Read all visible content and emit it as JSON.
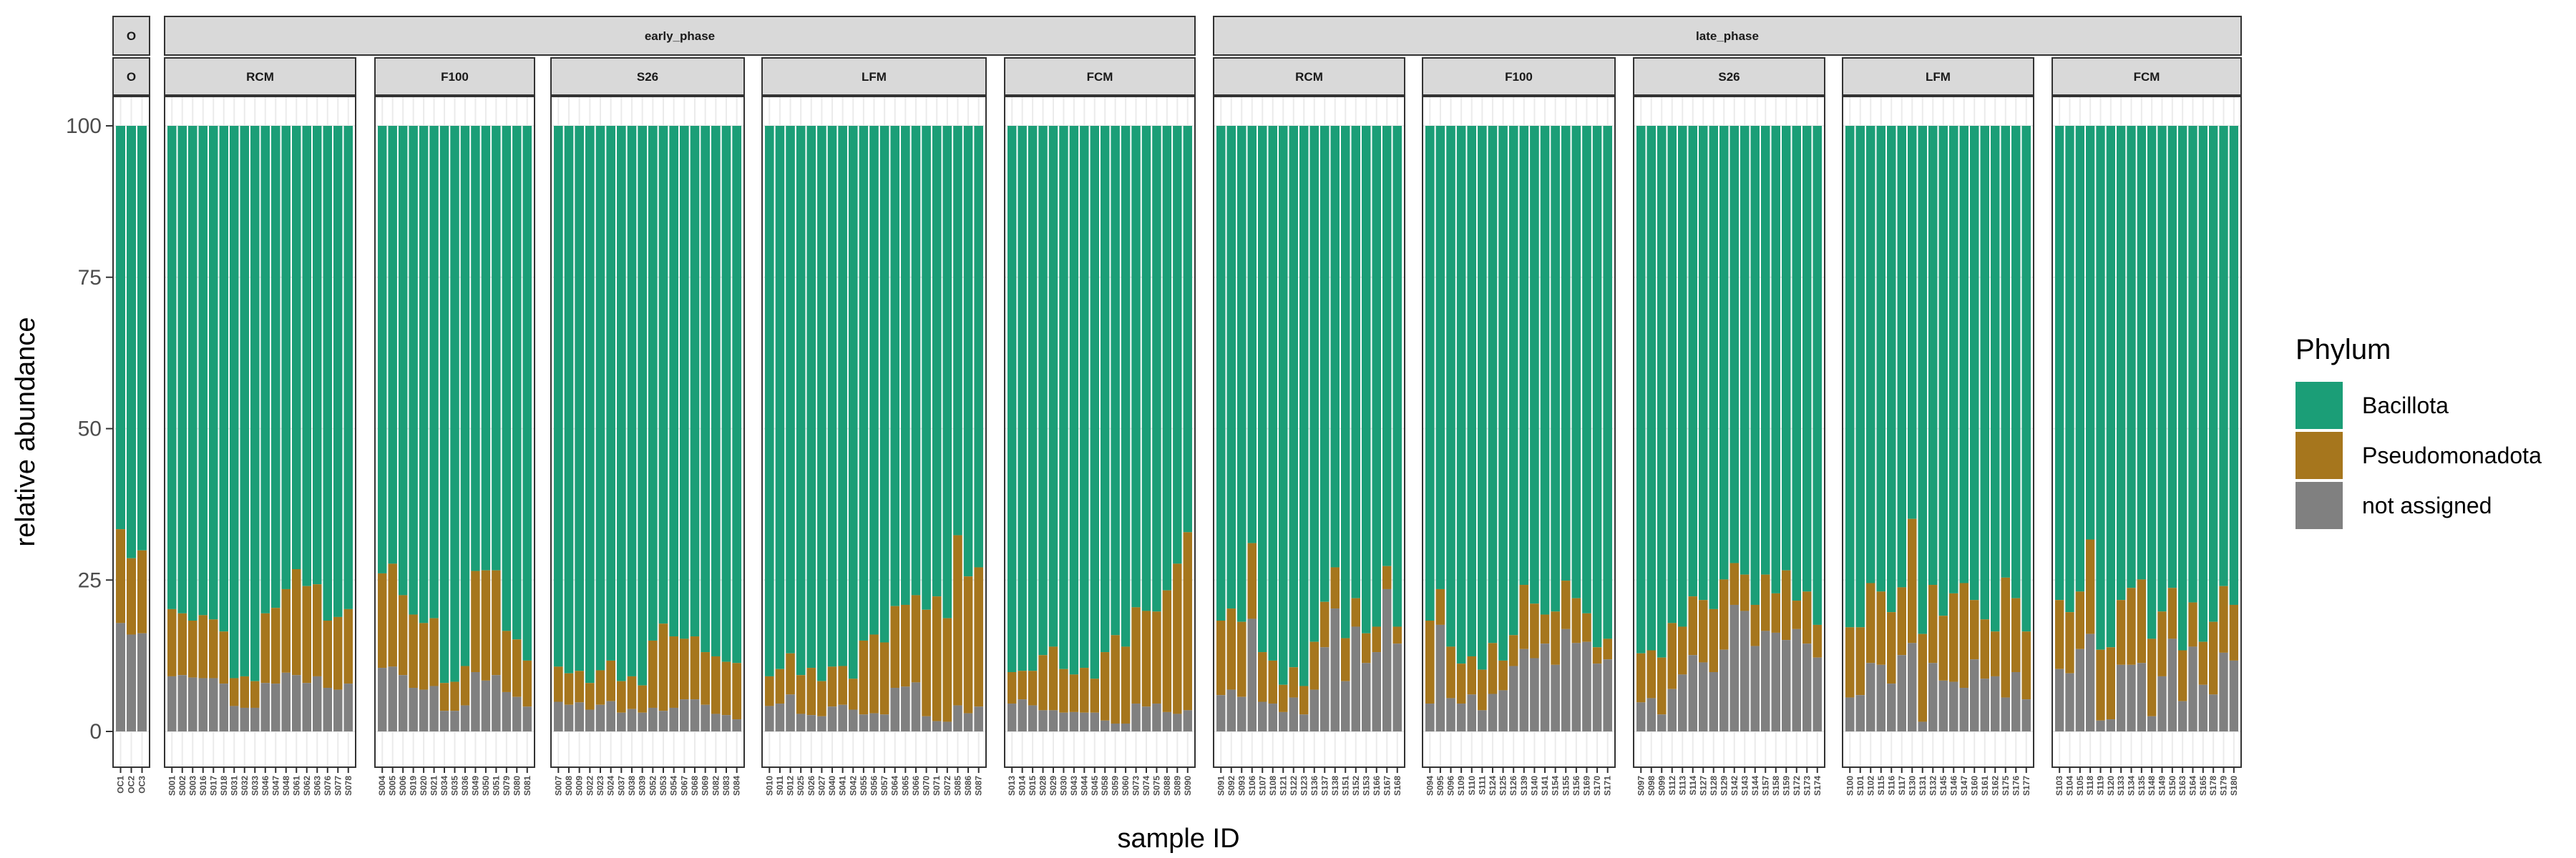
{
  "chart_data": {
    "type": "bar",
    "stacked": true,
    "xlabel": "sample ID",
    "ylabel": "relative abundance",
    "ylim": [
      0,
      100
    ],
    "yticks": [
      0,
      25,
      50,
      75,
      100
    ],
    "grid": true,
    "legend": {
      "title": "Phylum",
      "position": "right",
      "entries": [
        {
          "name": "Bacillota",
          "color": "#1b9e77"
        },
        {
          "name": "Pseudomonadota",
          "color": "#a6761d"
        },
        {
          "name": "not assigned",
          "color": "#808080"
        }
      ]
    },
    "phase_strips": [
      {
        "label": "O"
      },
      {
        "label": "early_phase"
      },
      {
        "label": "late_phase"
      }
    ],
    "facets": [
      {
        "phase": "O",
        "group": "O",
        "samples": [
          "OC1",
          "OC2",
          "OC3"
        ],
        "not_assigned": [
          17.9,
          16.0,
          16.2
        ],
        "pseudomonadota": [
          15.5,
          12.6,
          13.7
        ],
        "bacillota": [
          66.6,
          71.4,
          70.1
        ]
      },
      {
        "phase": "early_phase",
        "group": "RCM",
        "samples": [
          "S001",
          "S002",
          "S003",
          "S016",
          "S017",
          "S018",
          "S031",
          "S032",
          "S033",
          "S046",
          "S047",
          "S048",
          "S061",
          "S062",
          "S063",
          "S076",
          "S077",
          "S078"
        ],
        "not_assigned": [
          9.1,
          9.3,
          8.9,
          8.8,
          8.8,
          7.9,
          4.2,
          3.9,
          3.9,
          8.0,
          7.9,
          9.7,
          9.3,
          8.0,
          9.1,
          7.2,
          6.9,
          7.9
        ],
        "pseudomonadota": [
          11.1,
          10.2,
          9.4,
          10.4,
          9.7,
          8.6,
          4.6,
          5.2,
          4.4,
          11.5,
          12.5,
          13.8,
          17.5,
          16.0,
          15.2,
          11.1,
          12.0,
          12.3
        ],
        "bacillota": [
          79.8,
          80.5,
          81.7,
          80.8,
          81.5,
          83.5,
          91.2,
          90.9,
          91.7,
          80.5,
          79.6,
          76.5,
          73.2,
          76.0,
          75.7,
          81.7,
          81.1,
          79.8
        ]
      },
      {
        "phase": "early_phase",
        "group": "F100",
        "samples": [
          "S004",
          "S005",
          "S006",
          "S019",
          "S020",
          "S021",
          "S034",
          "S035",
          "S036",
          "S049",
          "S050",
          "S051",
          "S079",
          "S080",
          "S081"
        ],
        "not_assigned": [
          10.5,
          10.7,
          9.3,
          7.2,
          6.9,
          7.5,
          3.4,
          3.4,
          4.3,
          9.8,
          8.4,
          9.3,
          6.5,
          5.7,
          4.1
        ],
        "pseudomonadota": [
          15.6,
          17.0,
          13.2,
          12.1,
          11.0,
          11.2,
          4.6,
          4.8,
          6.5,
          16.7,
          18.2,
          17.3,
          10.1,
          9.5,
          7.6
        ],
        "bacillota": [
          73.9,
          72.3,
          77.5,
          80.7,
          82.1,
          81.3,
          92.0,
          91.8,
          89.2,
          73.5,
          73.4,
          73.4,
          83.4,
          84.8,
          88.3
        ]
      },
      {
        "phase": "early_phase",
        "group": "S26",
        "samples": [
          "S007",
          "S008",
          "S009",
          "S022",
          "S023",
          "S024",
          "S037",
          "S038",
          "S039",
          "S052",
          "S053",
          "S054",
          "S067",
          "S068",
          "S069",
          "S082",
          "S083",
          "S084"
        ],
        "not_assigned": [
          4.9,
          4.4,
          4.8,
          3.6,
          4.4,
          5.0,
          3.1,
          3.7,
          3.1,
          3.9,
          3.4,
          3.9,
          5.3,
          5.3,
          4.4,
          2.9,
          2.7,
          2.0
        ],
        "pseudomonadota": [
          5.8,
          5.2,
          5.2,
          4.4,
          5.7,
          6.7,
          5.2,
          5.4,
          4.5,
          11.1,
          14.4,
          11.8,
          10.0,
          10.4,
          8.7,
          9.5,
          8.8,
          9.3
        ],
        "bacillota": [
          89.3,
          90.4,
          90.0,
          92.0,
          89.9,
          88.3,
          91.7,
          90.9,
          92.4,
          85.0,
          82.2,
          84.3,
          84.7,
          84.3,
          86.9,
          87.6,
          88.5,
          88.7
        ]
      },
      {
        "phase": "early_phase",
        "group": "LFM",
        "samples": [
          "S010",
          "S011",
          "S012",
          "S025",
          "S026",
          "S027",
          "S040",
          "S041",
          "S042",
          "S055",
          "S056",
          "S057",
          "S064",
          "S065",
          "S066",
          "S070",
          "S071",
          "S072",
          "S085",
          "S086",
          "S087"
        ],
        "not_assigned": [
          4.2,
          4.6,
          6.1,
          2.9,
          2.7,
          2.5,
          4.1,
          4.4,
          3.6,
          2.8,
          3.0,
          2.8,
          7.2,
          7.4,
          8.1,
          2.5,
          1.7,
          1.6,
          4.3,
          3.0,
          4.1
        ],
        "pseudomonadota": [
          4.9,
          5.7,
          6.8,
          6.4,
          7.8,
          5.8,
          6.6,
          6.4,
          5.1,
          12.2,
          13.0,
          11.9,
          13.5,
          13.5,
          14.4,
          17.6,
          20.6,
          17.1,
          28.1,
          22.6,
          23.0
        ],
        "bacillota": [
          90.9,
          89.7,
          87.1,
          90.7,
          89.5,
          91.7,
          89.3,
          89.2,
          91.3,
          85.0,
          84.0,
          85.3,
          79.3,
          79.1,
          77.5,
          79.9,
          77.7,
          81.3,
          67.6,
          74.4,
          72.9
        ]
      },
      {
        "phase": "early_phase",
        "group": "FCM",
        "samples": [
          "S013",
          "S014",
          "S015",
          "S028",
          "S029",
          "S030",
          "S043",
          "S044",
          "S045",
          "S058",
          "S059",
          "S060",
          "S073",
          "S074",
          "S075",
          "S088",
          "S089",
          "S090"
        ],
        "not_assigned": [
          4.6,
          5.3,
          4.3,
          3.5,
          3.5,
          3.1,
          3.2,
          3.1,
          3.1,
          1.8,
          1.3,
          1.3,
          4.6,
          4.1,
          4.6,
          3.2,
          2.9,
          3.5
        ],
        "pseudomonadota": [
          5.2,
          4.7,
          5.7,
          9.1,
          10.5,
          7.2,
          6.2,
          7.4,
          5.6,
          11.3,
          14.6,
          12.7,
          15.9,
          15.8,
          15.2,
          20.1,
          24.8,
          29.4
        ],
        "bacillota": [
          90.2,
          90.0,
          90.0,
          87.4,
          86.0,
          89.7,
          90.6,
          89.5,
          91.3,
          86.9,
          84.1,
          86.0,
          79.5,
          80.1,
          80.2,
          76.7,
          72.3,
          67.1
        ]
      },
      {
        "phase": "late_phase",
        "group": "RCM",
        "samples": [
          "S091",
          "S092",
          "S093",
          "S106",
          "S107",
          "S108",
          "S121",
          "S122",
          "S123",
          "S136",
          "S137",
          "S138",
          "S151",
          "S152",
          "S153",
          "S166",
          "S167",
          "S168"
        ],
        "not_assigned": [
          6.0,
          6.9,
          5.7,
          18.6,
          4.9,
          4.6,
          3.2,
          5.6,
          2.8,
          6.9,
          13.9,
          20.3,
          8.3,
          17.3,
          11.3,
          13.1,
          23.5,
          14.5
        ],
        "pseudomonadota": [
          12.3,
          13.4,
          12.4,
          12.5,
          8.2,
          7.1,
          4.5,
          5.0,
          4.7,
          7.9,
          7.5,
          6.8,
          7.1,
          4.7,
          4.9,
          4.2,
          3.8,
          2.8
        ],
        "bacillota": [
          81.7,
          79.7,
          81.9,
          68.9,
          86.9,
          88.3,
          92.3,
          89.4,
          92.5,
          85.2,
          78.6,
          72.9,
          84.6,
          78.0,
          83.8,
          82.7,
          72.7,
          82.7
        ]
      },
      {
        "phase": "late_phase",
        "group": "F100",
        "samples": [
          "S094",
          "S095",
          "S096",
          "S109",
          "S110",
          "S111",
          "S124",
          "S125",
          "S126",
          "S139",
          "S140",
          "S141",
          "S154",
          "S155",
          "S156",
          "S169",
          "S170",
          "S171"
        ],
        "not_assigned": [
          4.6,
          17.6,
          5.5,
          4.6,
          6.1,
          3.5,
          6.2,
          6.8,
          10.8,
          13.6,
          12.1,
          14.5,
          11.0,
          16.9,
          14.6,
          14.8,
          11.2,
          11.9
        ],
        "pseudomonadota": [
          13.7,
          5.9,
          8.5,
          6.6,
          6.3,
          6.7,
          8.4,
          4.9,
          5.1,
          10.6,
          9.0,
          4.8,
          8.8,
          8.0,
          7.4,
          4.7,
          2.7,
          3.4
        ],
        "bacillota": [
          81.7,
          76.5,
          86.0,
          88.8,
          87.6,
          89.8,
          85.4,
          88.3,
          84.1,
          75.8,
          78.9,
          80.7,
          80.2,
          75.1,
          78.0,
          80.5,
          86.1,
          84.7
        ]
      },
      {
        "phase": "late_phase",
        "group": "S26",
        "samples": [
          "S097",
          "S098",
          "S099",
          "S112",
          "S113",
          "S114",
          "S127",
          "S128",
          "S129",
          "S142",
          "S143",
          "S144",
          "S157",
          "S158",
          "S159",
          "S172",
          "S173",
          "S174"
        ],
        "not_assigned": [
          4.8,
          5.5,
          2.8,
          7.0,
          9.4,
          12.6,
          11.4,
          9.8,
          13.5,
          20.9,
          19.9,
          14.1,
          16.6,
          16.3,
          15.1,
          16.9,
          14.5,
          12.2
        ],
        "pseudomonadota": [
          8.1,
          7.9,
          9.4,
          10.9,
          7.9,
          9.7,
          10.3,
          10.4,
          11.6,
          6.9,
          6.0,
          6.8,
          9.3,
          6.5,
          11.5,
          4.7,
          8.6,
          5.4
        ],
        "bacillota": [
          87.1,
          86.6,
          87.8,
          82.1,
          82.7,
          77.7,
          78.3,
          79.8,
          74.9,
          72.2,
          74.1,
          79.1,
          74.1,
          77.2,
          73.4,
          78.4,
          76.9,
          82.4
        ]
      },
      {
        "phase": "late_phase",
        "group": "LFM",
        "samples": [
          "S100",
          "S101",
          "S102",
          "S115",
          "S116",
          "S117",
          "S130",
          "S131",
          "S132",
          "S145",
          "S146",
          "S147",
          "S160",
          "S161",
          "S162",
          "S175",
          "S176",
          "S177"
        ],
        "not_assigned": [
          5.6,
          6.0,
          11.3,
          11.0,
          7.9,
          12.6,
          14.6,
          1.6,
          11.3,
          8.4,
          8.2,
          7.2,
          11.9,
          8.7,
          9.1,
          5.6,
          9.8,
          5.3
        ],
        "pseudomonadota": [
          11.6,
          11.2,
          13.2,
          12.1,
          11.8,
          11.2,
          20.5,
          14.5,
          12.9,
          10.7,
          14.6,
          17.3,
          9.8,
          9.8,
          7.4,
          19.8,
          12.2,
          11.2
        ],
        "bacillota": [
          82.8,
          82.8,
          75.5,
          76.9,
          80.3,
          76.2,
          64.9,
          83.9,
          75.8,
          80.9,
          77.2,
          75.5,
          78.3,
          81.5,
          83.5,
          74.6,
          78.0,
          83.5
        ]
      },
      {
        "phase": "late_phase",
        "group": "FCM",
        "samples": [
          "S103",
          "S104",
          "S105",
          "S118",
          "S119",
          "S120",
          "S133",
          "S134",
          "S135",
          "S148",
          "S149",
          "S150",
          "S163",
          "S164",
          "S165",
          "S178",
          "S179",
          "S180"
        ],
        "not_assigned": [
          10.3,
          9.6,
          13.6,
          16.1,
          1.8,
          2.0,
          11.0,
          11.0,
          11.3,
          2.5,
          9.1,
          15.3,
          5.0,
          14.0,
          7.7,
          6.1,
          13.0,
          11.7
        ],
        "pseudomonadota": [
          11.4,
          10.1,
          9.5,
          15.6,
          11.7,
          11.9,
          10.7,
          12.7,
          13.8,
          12.8,
          10.7,
          8.4,
          8.4,
          7.3,
          7.1,
          12.0,
          11.0,
          9.2
        ],
        "bacillota": [
          78.3,
          80.3,
          76.9,
          68.3,
          86.5,
          86.1,
          78.3,
          76.3,
          74.9,
          84.7,
          80.2,
          76.3,
          86.6,
          78.7,
          85.2,
          81.9,
          76.0,
          79.1
        ]
      }
    ]
  }
}
